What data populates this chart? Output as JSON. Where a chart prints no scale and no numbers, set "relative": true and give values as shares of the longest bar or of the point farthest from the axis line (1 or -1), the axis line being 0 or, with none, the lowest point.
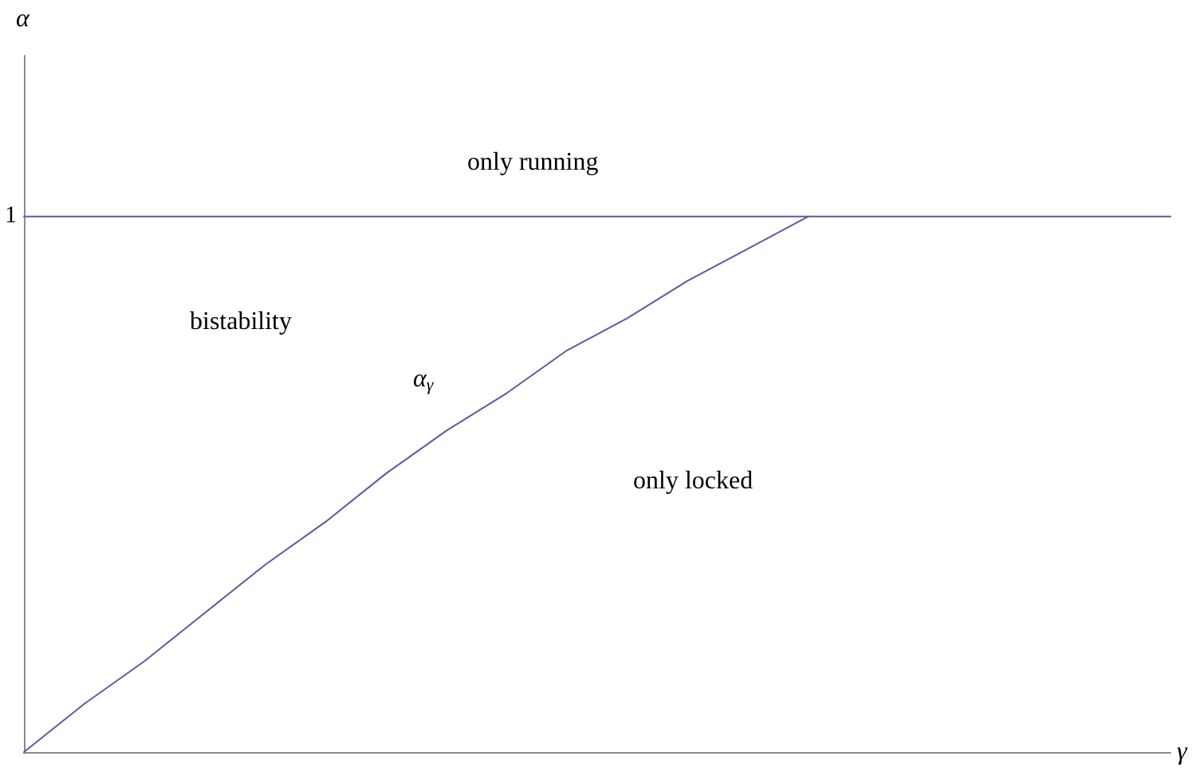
{
  "chart_data": {
    "type": "line",
    "relative": true,
    "xlabel": "γ",
    "categories": [
      null,
      null,
      null,
      null,
      null,
      null,
      null,
      null,
      null,
      null,
      null,
      null,
      null,
      null,
      null,
      null,
      null,
      null,
      null,
      null
    ],
    "series": [
      {
        "color": "#5b5b9e",
        "values": [
          1,
          1,
          1,
          1,
          1,
          1,
          1,
          1,
          1,
          1,
          1,
          1,
          1,
          1,
          1,
          1,
          1,
          1,
          1,
          1
        ]
      },
      {
        "color": "#5b5b9e",
        "values": [
          0,
          0.09,
          0.17,
          0.26,
          0.35,
          0.43,
          0.52,
          0.6,
          0.67,
          0.75,
          0.81,
          0.88,
          0.94,
          1,
          null,
          null,
          null,
          null,
          null,
          null
        ]
      }
    ],
    "annotations": [
      "1",
      "only running",
      "bistability",
      "α$_{γ}$",
      "only locked",
      "α"
    ],
    "grid": false,
    "marker": "none",
    "line_style": "solid"
  }
}
